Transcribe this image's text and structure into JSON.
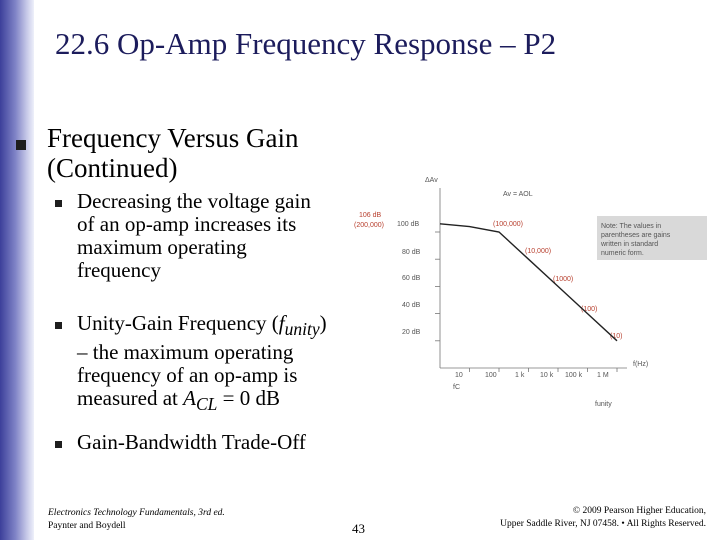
{
  "slide": {
    "title": "22.6 Op-Amp Frequency Response – P2",
    "main_bullet": "Frequency Versus Gain (Continued)",
    "sub_bullets": {
      "b1": "Decreasing the voltage gain of an op-amp increases its maximum operating frequency",
      "b2_pre": "Unity-Gain Frequency (",
      "b2_f": "f",
      "b2_sub": "unity",
      "b2_mid": ") – the maximum operating frequency of an op-amp is measured at ",
      "b2_acl": "A",
      "b2_acl_sub": "CL",
      "b2_end": " = 0 dB",
      "b3": "Gain-Bandwidth Trade-Off"
    },
    "page_number": "43"
  },
  "footer": {
    "left_line1": "Electronics Technology Fundamentals, 3rd ed.",
    "left_line2": "Paynter and Boydell",
    "right_line1": "© 2009 Pearson Higher Education,",
    "right_line2": "Upper Saddle River, NJ 07458. • All Rights Reserved."
  },
  "chart_data": {
    "type": "line",
    "ylabel": "ΔAv",
    "xlabel": "f(Hz)",
    "x_ticks": [
      "10",
      "100",
      "1 k",
      "10 k",
      "100 k",
      "1 M"
    ],
    "y_ticks": [
      "100 dB",
      "80 dB",
      "60 dB",
      "40 dB",
      "20 dB"
    ],
    "curve_label": "Av = AOL",
    "fc_label": "fC",
    "funity_label": "funity",
    "callouts_left": {
      "top": "106 dB",
      "bottom": "(200,000)"
    },
    "callouts_right": [
      "(100,000)",
      "(10,000)",
      "(1000)",
      "(100)",
      "(10)"
    ],
    "note": [
      "Note: The values in",
      "parentheses are gains",
      "written in standard",
      "numeric form."
    ],
    "series": [
      {
        "x": [
          1,
          10,
          100,
          1000,
          10000,
          100000,
          1000000
        ],
        "y": [
          106,
          104,
          100,
          80,
          60,
          40,
          20
        ]
      }
    ]
  }
}
